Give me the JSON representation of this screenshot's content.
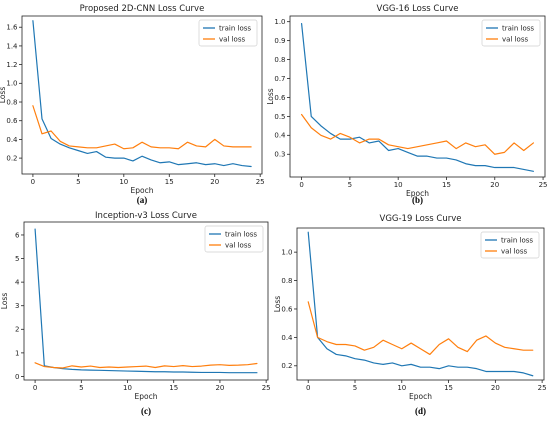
{
  "chart_data": [
    {
      "type": "line",
      "title": "Proposed 2D-CNN Loss Curve",
      "panel_label": "(a)",
      "xlabel": "Epoch",
      "ylabel": "Loss",
      "xlim": [
        -1.2,
        25.2
      ],
      "ylim": [
        0.03,
        1.72
      ],
      "xticks": [
        0,
        5,
        10,
        15,
        20,
        25
      ],
      "yticks": [
        0.2,
        0.4,
        0.6,
        0.8,
        1.0,
        1.2,
        1.4,
        1.6
      ],
      "ytick_labels": [
        "0.2",
        "0.4",
        "0.6",
        "0.8",
        "1.0",
        "1.2",
        "1.4",
        "1.6"
      ],
      "legend_position": "top-right",
      "grid": false,
      "x": [
        0,
        1,
        2,
        3,
        4,
        5,
        6,
        7,
        8,
        9,
        10,
        11,
        12,
        13,
        14,
        15,
        16,
        17,
        18,
        19,
        20,
        21,
        22,
        23,
        24
      ],
      "series": [
        {
          "name": "train loss",
          "color": "#1f77b4",
          "values": [
            1.67,
            0.62,
            0.41,
            0.35,
            0.31,
            0.28,
            0.25,
            0.27,
            0.21,
            0.2,
            0.2,
            0.17,
            0.22,
            0.18,
            0.15,
            0.16,
            0.13,
            0.14,
            0.15,
            0.13,
            0.14,
            0.12,
            0.14,
            0.12,
            0.11
          ]
        },
        {
          "name": "val loss",
          "color": "#ff7f0e",
          "values": [
            0.76,
            0.46,
            0.49,
            0.38,
            0.33,
            0.32,
            0.31,
            0.31,
            0.33,
            0.35,
            0.3,
            0.31,
            0.37,
            0.32,
            0.31,
            0.31,
            0.3,
            0.37,
            0.33,
            0.32,
            0.4,
            0.33,
            0.32,
            0.32,
            0.32
          ]
        }
      ]
    },
    {
      "type": "line",
      "title": "VGG-16 Loss Curve",
      "panel_label": "(b)",
      "xlabel": "Epoch",
      "ylabel": "Loss",
      "xlim": [
        -1.2,
        25.2
      ],
      "ylim": [
        0.18,
        1.03
      ],
      "xticks": [
        0,
        5,
        10,
        15,
        20,
        25
      ],
      "yticks": [
        0.3,
        0.4,
        0.5,
        0.6,
        0.7,
        0.8,
        0.9,
        1.0
      ],
      "ytick_labels": [
        "0.3",
        "0.4",
        "0.5",
        "0.6",
        "0.7",
        "0.8",
        "0.9",
        "1.0"
      ],
      "legend_position": "top-right",
      "grid": false,
      "x": [
        0,
        1,
        2,
        3,
        4,
        5,
        6,
        7,
        8,
        9,
        10,
        11,
        12,
        13,
        14,
        15,
        16,
        17,
        18,
        19,
        20,
        21,
        22,
        23,
        24
      ],
      "series": [
        {
          "name": "train loss",
          "color": "#1f77b4",
          "values": [
            0.99,
            0.5,
            0.45,
            0.41,
            0.38,
            0.38,
            0.39,
            0.36,
            0.37,
            0.32,
            0.33,
            0.31,
            0.29,
            0.29,
            0.28,
            0.28,
            0.27,
            0.25,
            0.24,
            0.24,
            0.23,
            0.23,
            0.23,
            0.22,
            0.21
          ]
        },
        {
          "name": "val loss",
          "color": "#ff7f0e",
          "values": [
            0.51,
            0.44,
            0.4,
            0.38,
            0.41,
            0.39,
            0.36,
            0.38,
            0.38,
            0.35,
            0.34,
            0.33,
            0.34,
            0.35,
            0.36,
            0.37,
            0.33,
            0.36,
            0.34,
            0.35,
            0.3,
            0.31,
            0.36,
            0.32,
            0.36
          ]
        }
      ]
    },
    {
      "type": "line",
      "title": "Inception-v3 Loss Curve",
      "panel_label": "(c)",
      "xlabel": "Epoch",
      "ylabel": "Loss",
      "xlim": [
        -1.2,
        25.2
      ],
      "ylim": [
        -0.15,
        6.55
      ],
      "xticks": [
        0,
        5,
        10,
        15,
        20,
        25
      ],
      "yticks": [
        0,
        1,
        2,
        3,
        4,
        5,
        6
      ],
      "ytick_labels": [
        "0",
        "1",
        "2",
        "3",
        "4",
        "5",
        "6"
      ],
      "legend_position": "top-right",
      "grid": false,
      "x": [
        0,
        1,
        2,
        3,
        4,
        5,
        6,
        7,
        8,
        9,
        10,
        11,
        12,
        13,
        14,
        15,
        16,
        17,
        18,
        19,
        20,
        21,
        22,
        23,
        24
      ],
      "series": [
        {
          "name": "train loss",
          "color": "#1f77b4",
          "values": [
            6.25,
            0.45,
            0.38,
            0.33,
            0.3,
            0.28,
            0.27,
            0.26,
            0.25,
            0.24,
            0.23,
            0.22,
            0.21,
            0.2,
            0.2,
            0.19,
            0.19,
            0.18,
            0.17,
            0.17,
            0.17,
            0.16,
            0.16,
            0.16,
            0.16
          ]
        },
        {
          "name": "val loss",
          "color": "#ff7f0e",
          "values": [
            0.58,
            0.42,
            0.38,
            0.36,
            0.45,
            0.4,
            0.44,
            0.38,
            0.4,
            0.38,
            0.4,
            0.42,
            0.44,
            0.38,
            0.45,
            0.42,
            0.46,
            0.42,
            0.44,
            0.48,
            0.5,
            0.47,
            0.48,
            0.5,
            0.55
          ]
        }
      ]
    },
    {
      "type": "line",
      "title": "VGG-19 Loss Curve",
      "panel_label": "(d)",
      "xlabel": "Epoch",
      "ylabel": "Loss",
      "xlim": [
        -1.2,
        25.2
      ],
      "ylim": [
        0.1,
        1.17
      ],
      "xticks": [
        0,
        5,
        10,
        15,
        20,
        25
      ],
      "yticks": [
        0.2,
        0.4,
        0.6,
        0.8,
        1.0
      ],
      "ytick_labels": [
        "0.2",
        "0.4",
        "0.6",
        "0.8",
        "1.0"
      ],
      "legend_position": "top-right",
      "grid": false,
      "x": [
        0,
        1,
        2,
        3,
        4,
        5,
        6,
        7,
        8,
        9,
        10,
        11,
        12,
        13,
        14,
        15,
        16,
        17,
        18,
        19,
        20,
        21,
        22,
        23,
        24
      ],
      "series": [
        {
          "name": "train loss",
          "color": "#1f77b4",
          "values": [
            1.14,
            0.4,
            0.32,
            0.28,
            0.27,
            0.25,
            0.24,
            0.22,
            0.21,
            0.22,
            0.2,
            0.21,
            0.19,
            0.19,
            0.18,
            0.2,
            0.19,
            0.19,
            0.18,
            0.16,
            0.16,
            0.16,
            0.16,
            0.15,
            0.13
          ]
        },
        {
          "name": "val loss",
          "color": "#ff7f0e",
          "values": [
            0.65,
            0.4,
            0.37,
            0.35,
            0.35,
            0.34,
            0.31,
            0.33,
            0.38,
            0.35,
            0.32,
            0.36,
            0.32,
            0.28,
            0.35,
            0.39,
            0.33,
            0.3,
            0.38,
            0.41,
            0.36,
            0.33,
            0.32,
            0.31,
            0.31
          ]
        }
      ]
    }
  ]
}
